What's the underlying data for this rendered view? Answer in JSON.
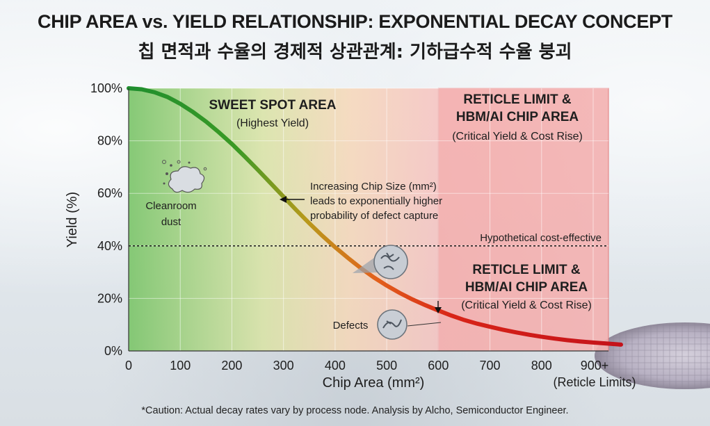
{
  "title": "CHIP AREA vs. YIELD RELATIONSHIP: EXPONENTIAL DECAY CONCEPT",
  "subtitle": "칩 면적과 수율의 경제적 상관관계: 기하급수적 수율 붕괴",
  "caption": "*Caution: Actual decay rates vary by process node. Analysis by Alcho, Semiconductor Engineer.",
  "chart_data": {
    "type": "line",
    "title": "CHIP AREA vs. YIELD RELATIONSHIP: EXPONENTIAL DECAY CONCEPT",
    "xlabel": "Chip Area (mm²)",
    "ylabel": "Yield (%)",
    "xlim": [
      0,
      900
    ],
    "ylim": [
      0,
      100
    ],
    "x_ticks": [
      "0",
      "100",
      "200",
      "300",
      "400",
      "500",
      "600",
      "700",
      "800",
      "900+"
    ],
    "x_tick_note": "(Reticle Limits)",
    "y_ticks": [
      "0%",
      "20%",
      "40%",
      "60%",
      "80%",
      "100%"
    ],
    "grid": true,
    "series": [
      {
        "color": "#cc1a1a",
        "x": [
          0,
          25,
          50,
          75,
          100,
          125,
          150,
          175,
          200,
          225,
          250,
          275,
          300,
          325,
          350,
          375,
          400,
          425,
          450,
          475,
          500,
          525,
          550,
          575,
          600,
          625,
          650,
          675,
          700,
          725,
          750,
          775,
          800,
          825,
          850,
          875,
          900
        ],
        "y": [
          100,
          99.6,
          98.5,
          96.7,
          94.1,
          90.9,
          87.3,
          83.2,
          78.8,
          74.0,
          69.0,
          63.9,
          58.7,
          53.6,
          48.6,
          43.9,
          39.5,
          35.4,
          31.5,
          28.0,
          24.9,
          22.1,
          19.6,
          17.4,
          15.4,
          13.5,
          11.8,
          10.4,
          9.2,
          8.1,
          7.1,
          6.2,
          5.4,
          4.7,
          4.1,
          3.6,
          3.2
        ]
      }
    ],
    "reference_line": {
      "y": 40,
      "label": "Hypothetical cost-effective"
    },
    "regions": [
      {
        "label": "SWEET SPOT AREA",
        "sublabel": "(Highest Yield)",
        "color": "#7dc76a"
      },
      {
        "label_lines": [
          "RETICLE LIMIT &",
          "HBM/AI CHIP AREA"
        ],
        "sublabel": "(Critical Yield & Cost Rise)",
        "x_start": 600,
        "color": "#f2a3a3"
      }
    ],
    "annotations": [
      {
        "text_lines": [
          "Increasing Chip Size (mm²)",
          "leads to exponentially higher",
          "probability of defect capture"
        ]
      },
      {
        "text_lines": [
          "RETICLE LIMIT &",
          "HBM/AI CHIP AREA"
        ],
        "sublabel": "(Critical Yield & Cost Rise)"
      },
      {
        "text_lines": [
          "Cleanroom",
          "dust"
        ]
      },
      {
        "text_lines": [
          "Defects"
        ]
      }
    ]
  }
}
